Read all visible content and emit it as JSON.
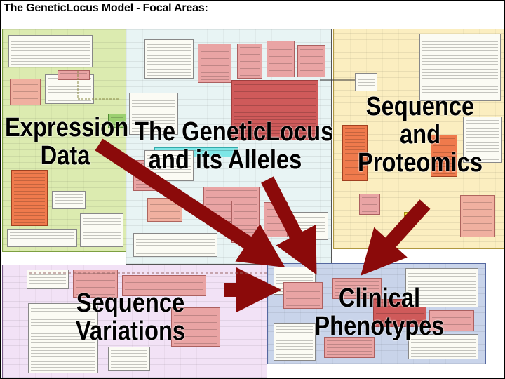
{
  "title": "The GeneticLocus Model - Focal Areas:",
  "areas": {
    "expression": {
      "lines": [
        "Expression",
        "Data"
      ]
    },
    "genetic_locus": {
      "lines": [
        "The GeneticLocus",
        "and its Alleles"
      ]
    },
    "sequence_proteomics": {
      "lines": [
        "Sequence",
        "and",
        "Proteomics"
      ]
    },
    "sequence_variations": {
      "lines": [
        "Sequence",
        "Variations"
      ]
    },
    "clinical": {
      "lines": [
        "Clinical",
        "Phenotypes"
      ]
    }
  },
  "colors": {
    "arrow": "#8b0a0a",
    "expression_bg": "#dcebb0",
    "locus_bg": "#e8f4f4",
    "sequence_bg": "#fbeec0",
    "variations_bg": "#f2e2f6",
    "clinical_bg": "#c9d4ea"
  }
}
